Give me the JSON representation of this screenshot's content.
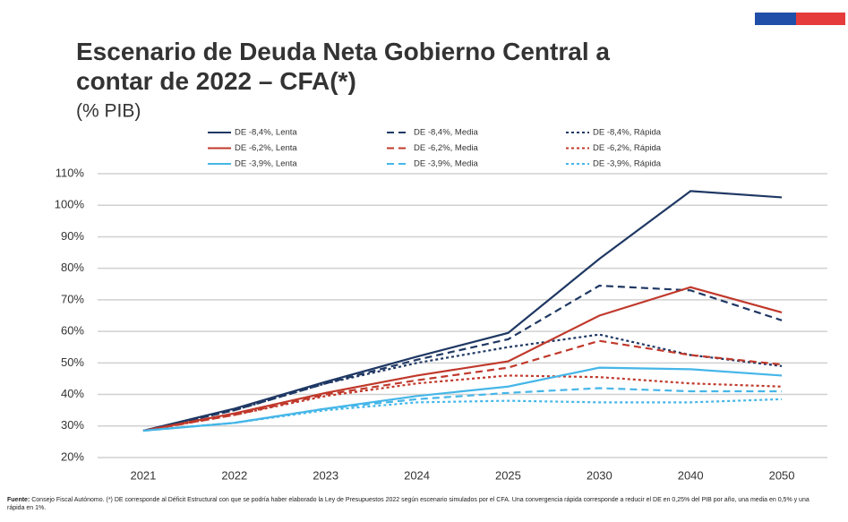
{
  "chart_data": {
    "type": "line",
    "title": "Escenario de Deuda Neta Gobierno Central a contar de 2022 – CFA(*)",
    "subtitle": "(% PIB)",
    "categories": [
      "2021",
      "2022",
      "2023",
      "2024",
      "2025",
      "2030",
      "2040",
      "2050"
    ],
    "series": [
      {
        "name": "DE -8,4%, Lenta",
        "color": "#1f3864",
        "dash": "solid",
        "values": [
          28.5,
          35.5,
          44,
          52,
          59.5,
          83,
          104.5,
          102.5
        ]
      },
      {
        "name": "DE -8,4%, Media",
        "color": "#1f3864",
        "dash": "dashed",
        "values": [
          28.5,
          35,
          43.5,
          51,
          57.5,
          74.5,
          73,
          63.5
        ]
      },
      {
        "name": "DE -8,4%, Rápida",
        "color": "#1f3864",
        "dash": "dotted",
        "values": [
          28.5,
          35,
          43.5,
          50,
          55,
          59,
          52.5,
          49
        ]
      },
      {
        "name": "DE -6,2%, Lenta",
        "color": "#c0392b",
        "dash": "solid",
        "values": [
          28.5,
          34,
          40.5,
          46,
          50.5,
          65,
          74,
          66
        ]
      },
      {
        "name": "DE -6,2%, Media",
        "color": "#c0392b",
        "dash": "dashed",
        "values": [
          28.5,
          33.5,
          40,
          44.5,
          48.5,
          57,
          52.5,
          49.5
        ]
      },
      {
        "name": "DE -6,2%, Rápida",
        "color": "#c0392b",
        "dash": "dotted",
        "values": [
          28.5,
          33.5,
          39.5,
          43.5,
          46,
          45.5,
          43.5,
          42.5
        ]
      },
      {
        "name": "DE -3,9%, Lenta",
        "color": "#45b6e8",
        "dash": "solid",
        "values": [
          28.5,
          31,
          35.5,
          39.5,
          42.5,
          48.5,
          48,
          46
        ]
      },
      {
        "name": "DE -3,9%, Media",
        "color": "#45b6e8",
        "dash": "dashed",
        "values": [
          28.5,
          31,
          35.5,
          38.5,
          40.5,
          42,
          41,
          41
        ]
      },
      {
        "name": "DE -3,9%, Rápida",
        "color": "#45b6e8",
        "dash": "dotted",
        "values": [
          28.5,
          31,
          35,
          37.5,
          38,
          37.5,
          37.5,
          38.5
        ]
      }
    ],
    "ylim": [
      20,
      110
    ],
    "yticks": [
      {
        "value": 20,
        "label": "20%"
      },
      {
        "value": 30,
        "label": "30%"
      },
      {
        "value": 40,
        "label": "40%"
      },
      {
        "value": 50,
        "label": "50%"
      },
      {
        "value": 60,
        "label": "60%"
      },
      {
        "value": 70,
        "label": "70%"
      },
      {
        "value": 80,
        "label": "80%"
      },
      {
        "value": 90,
        "label": "90%"
      },
      {
        "value": 100,
        "label": "100%"
      },
      {
        "value": 110,
        "label": "110%"
      }
    ],
    "grid": true,
    "legend": "top",
    "source_label": "Fuente:",
    "source": "Consejo Fiscal Autónomo. (*) DE corresponde al Déficit Estructural con que se podría haber elaborado la Ley de Presupuestos 2022 según escenario simulados por el CFA. Una convergencia rápida corresponde a reducir el DE en 0,25% del PIB por año, una media en 0,5% y una rápida en 1%."
  }
}
